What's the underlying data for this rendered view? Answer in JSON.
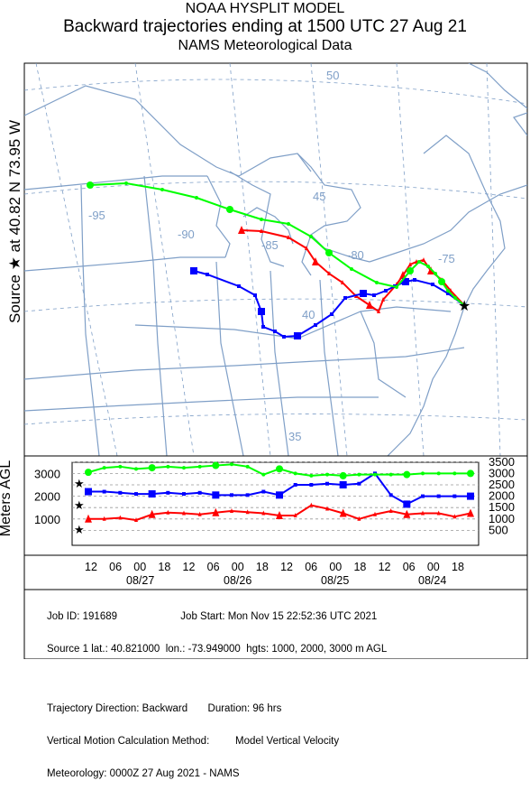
{
  "header": {
    "line1": "NOAA HYSPLIT MODEL",
    "line2": "Backward trajectories ending at 1500 UTC 27 Aug 21",
    "line3": "NAMS Meteorological Data"
  },
  "source_label": "Source ★ at   40.82 N   73.95 W",
  "meters_label": "Meters AGL",
  "map": {
    "lon_labels": [
      "-95",
      "-90",
      "-85",
      "-80",
      "-75"
    ],
    "lat_labels": [
      "50",
      "45",
      "40",
      "35"
    ]
  },
  "colors": {
    "red": "#ff0000",
    "blue": "#0000ff",
    "green": "#00ff00",
    "border": "#7f9fc7"
  },
  "chart_data": {
    "type": "line",
    "xlabel": "",
    "ylabel": "Meters AGL",
    "ylim": [
      0,
      3500
    ],
    "x_hours_before_end": [
      96,
      90,
      84,
      78,
      72,
      66,
      60,
      54,
      48,
      42,
      36,
      30,
      24,
      18,
      12,
      6,
      0
    ],
    "x_tick_labels": [
      "12",
      "06",
      "00",
      "18",
      "12",
      "06",
      "00",
      "18",
      "12",
      "06",
      "00",
      "18",
      "12",
      "06",
      "00",
      "18"
    ],
    "x_date_labels": [
      "08/27",
      "08/26",
      "08/25",
      "08/24"
    ],
    "y_left_ticks": [
      "1000",
      "2000",
      "3000"
    ],
    "y_right_ticks": [
      "500",
      "1000",
      "1500",
      "2000",
      "2500",
      "3000",
      "3500"
    ],
    "series": [
      {
        "name": "1000",
        "color": "#ff0000",
        "values": [
          1000,
          1000,
          1050,
          950,
          1200,
          1280,
          1250,
          1200,
          1280,
          1350,
          1300,
          1250,
          1150,
          1150,
          1600,
          1450,
          1250,
          1000,
          1200,
          1350,
          1200,
          1250,
          1250,
          1100,
          1250
        ]
      },
      {
        "name": "2000",
        "color": "#0000ff",
        "values": [
          2200,
          2200,
          2150,
          2100,
          2100,
          2150,
          2100,
          2150,
          2050,
          2050,
          2050,
          2200,
          2050,
          2500,
          2500,
          2550,
          2500,
          2550,
          3000,
          2050,
          1650,
          2000,
          2000,
          2000,
          2000
        ]
      },
      {
        "name": "3000",
        "color": "#00ff00",
        "values": [
          3050,
          3250,
          3300,
          3200,
          3250,
          3300,
          3250,
          3300,
          3350,
          3400,
          3300,
          2950,
          3200,
          3000,
          2900,
          2950,
          2900,
          2950,
          2950,
          2950,
          2950,
          3000,
          3000,
          3000,
          3000
        ]
      }
    ]
  },
  "info": {
    "line1": "Job ID: 191689                      Job Start: Mon Nov 15 22:52:36 UTC 2021",
    "line2": "Source 1 lat.: 40.821000  lon.: -73.949000  hgts: 1000, 2000, 3000 m AGL",
    "line3": "Trajectory Direction: Backward       Duration: 96 hrs",
    "line4": "Vertical Motion Calculation Method:         Model Vertical Velocity",
    "line5": "Meteorology: 0000Z 27 Aug 2021 - NAMS"
  }
}
